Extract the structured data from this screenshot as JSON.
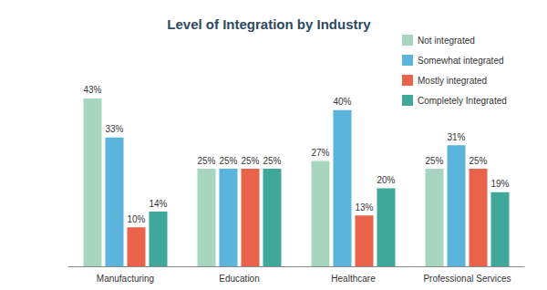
{
  "chart_data": {
    "type": "bar",
    "title": "Level of Integration by Industry",
    "categories": [
      "Manufacturing",
      "Education",
      "Healthcare",
      "Professional Services"
    ],
    "series": [
      {
        "name": "Not integrated",
        "color": "#a8d5c0",
        "values": [
          43,
          25,
          27,
          25
        ],
        "value_labels": [
          "43%",
          "25%",
          "27%",
          "25%"
        ]
      },
      {
        "name": "Somewhat integrated",
        "color": "#5ab4db",
        "values": [
          33,
          25,
          40,
          31
        ],
        "value_labels": [
          "33%",
          "25%",
          "40%",
          "31%"
        ]
      },
      {
        "name": "Mostly integrated",
        "color": "#e8634a",
        "values": [
          10,
          25,
          13,
          25
        ],
        "value_labels": [
          "10%",
          "25%",
          "13%",
          "25%"
        ]
      },
      {
        "name": "Completely Integrated",
        "color": "#3fa89a",
        "values": [
          14,
          25,
          20,
          19
        ],
        "value_labels": [
          "14%",
          "25%",
          "20%",
          "19%"
        ]
      }
    ],
    "data_labels": true,
    "legend": "upper right",
    "grid": false,
    "tick_labels": "x"
  }
}
